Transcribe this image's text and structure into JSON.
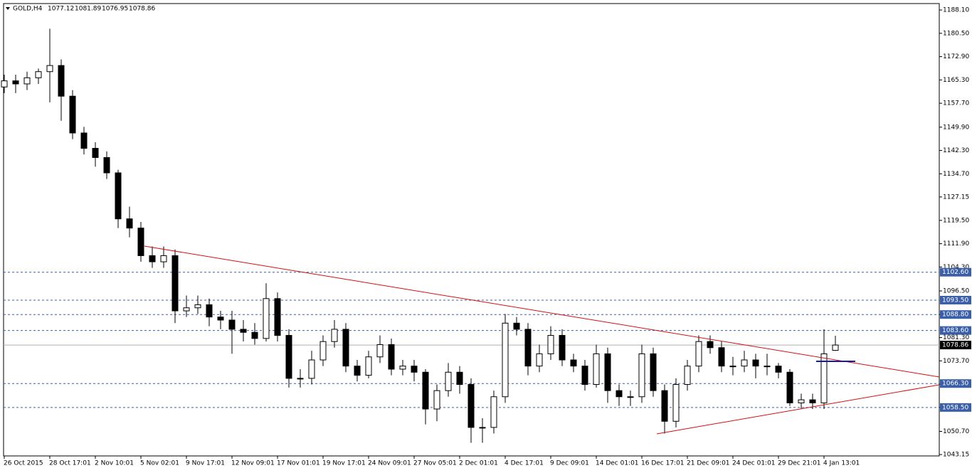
{
  "chart_data": {
    "type": "candlestick",
    "title": "GOLD,H4",
    "categories": [
      "26 Oct 2015",
      null,
      null,
      null,
      "28 Oct 17:01",
      null,
      null,
      null,
      "2 Nov 10:01",
      null,
      null,
      null,
      "5 Nov 02:01",
      null,
      null,
      null,
      "9 Nov 17:01",
      null,
      null,
      null,
      "12 Nov 09:01",
      null,
      null,
      null,
      "17 Nov 01:01",
      null,
      null,
      null,
      "19 Nov 17:01",
      null,
      null,
      null,
      "24 Nov 09:01",
      null,
      null,
      null,
      "27 Nov 05:01",
      null,
      null,
      null,
      "2 Dec 01:01",
      null,
      null,
      null,
      "4 Dec 17:01",
      null,
      null,
      null,
      "9 Dec 09:01",
      null,
      null,
      null,
      "14 Dec 01:01",
      null,
      null,
      null,
      "16 Dec 17:01",
      null,
      null,
      null,
      "21 Dec 09:01",
      null,
      null,
      null,
      "24 Dec 01:01",
      null,
      null,
      null,
      "29 Dec 21:01",
      null,
      null,
      null,
      "4 Jan 13:01",
      null
    ],
    "open": [
      1163,
      1165,
      1164,
      1166,
      1168,
      1170,
      1160,
      1148,
      1143,
      1140,
      1135,
      1120,
      1117,
      1108,
      1106,
      1108,
      1090,
      1091,
      1092,
      1088,
      1087,
      1084,
      1083,
      1081,
      1094,
      1082,
      1068,
      1068,
      1074,
      1080,
      1084,
      1072,
      1069,
      1075,
      1079,
      1071,
      1072,
      1070,
      1058,
      1064,
      1070,
      1066,
      1052,
      1052,
      1062,
      1086,
      1084,
      1072,
      1076,
      1082,
      1074,
      1072,
      1066,
      1076,
      1064,
      1062,
      1062,
      1076,
      1064,
      1054,
      1066,
      1072,
      1080,
      1078,
      1072,
      1072,
      1074,
      1072,
      1072,
      1070,
      1060,
      1061,
      1060,
      1077.12
    ],
    "high": [
      1167,
      1167,
      1168,
      1169,
      1182,
      1172,
      1162,
      1150,
      1145,
      1142,
      1136,
      1124,
      1119,
      1111,
      1111,
      1110,
      1095,
      1095,
      1094,
      1090,
      1090,
      1087,
      1086,
      1099,
      1096,
      1084,
      1071,
      1077,
      1082,
      1087,
      1086,
      1074,
      1077,
      1082,
      1081,
      1074,
      1074,
      1071,
      1066,
      1073,
      1072,
      1068,
      1055,
      1064,
      1089,
      1088,
      1086,
      1079,
      1085,
      1084,
      1076,
      1074,
      1079,
      1078,
      1066,
      1064,
      1079,
      1078,
      1066,
      1068,
      1074,
      1082,
      1082,
      1080,
      1075,
      1077,
      1076,
      1076,
      1073,
      1071,
      1063,
      1063,
      1084,
      1081.89
    ],
    "low": [
      1161,
      1161,
      1162,
      1164,
      1158,
      1152,
      1146,
      1141,
      1137,
      1133,
      1117,
      1114,
      1106,
      1104,
      1104,
      1086,
      1088,
      1089,
      1085,
      1084,
      1076,
      1080,
      1079,
      1080,
      1080,
      1065,
      1065,
      1066,
      1072,
      1078,
      1070,
      1067,
      1068,
      1073,
      1069,
      1069,
      1067,
      1053,
      1054,
      1062,
      1063,
      1047,
      1047,
      1050,
      1060,
      1082,
      1069,
      1070,
      1074,
      1072,
      1070,
      1064,
      1065,
      1060,
      1059,
      1059,
      1060,
      1062,
      1050,
      1052,
      1064,
      1070,
      1076,
      1070,
      1069,
      1070,
      1068,
      1069,
      1068,
      1059,
      1058,
      1058,
      1058,
      1076.95
    ],
    "close": [
      1165,
      1164,
      1166,
      1168,
      1170,
      1160,
      1148,
      1143,
      1140,
      1135,
      1120,
      1117,
      1108,
      1106,
      1108,
      1090,
      1091,
      1092,
      1088,
      1087,
      1084,
      1083,
      1081,
      1094,
      1082,
      1068,
      1068,
      1074,
      1080,
      1084,
      1072,
      1069,
      1075,
      1079,
      1071,
      1072,
      1070,
      1058,
      1064,
      1070,
      1066,
      1052,
      1052,
      1062,
      1086,
      1084,
      1072,
      1076,
      1082,
      1074,
      1072,
      1066,
      1076,
      1064,
      1062,
      1062,
      1076,
      1064,
      1054,
      1066,
      1072,
      1080,
      1078,
      1072,
      1072,
      1074,
      1072,
      1072,
      1070,
      1060,
      1061,
      1060,
      1076,
      1078.86
    ],
    "ylim": [
      1042.7,
      1190.2
    ],
    "yticks": [
      {
        "value": 1188.1,
        "label": "1188.10"
      },
      {
        "value": 1180.5,
        "label": "1180.50"
      },
      {
        "value": 1172.9,
        "label": "1172.90"
      },
      {
        "value": 1165.3,
        "label": "1165.30"
      },
      {
        "value": 1157.7,
        "label": "1157.70"
      },
      {
        "value": 1149.9,
        "label": "1149.90"
      },
      {
        "value": 1142.3,
        "label": "1142.30"
      },
      {
        "value": 1134.7,
        "label": "1134.70"
      },
      {
        "value": 1127.15,
        "label": "1127.15"
      },
      {
        "value": 1119.5,
        "label": "1119.50"
      },
      {
        "value": 1111.9,
        "label": "1111.90"
      },
      {
        "value": 1104.3,
        "label": "1104.30"
      },
      {
        "value": 1096.5,
        "label": "1096.50"
      },
      {
        "value": 1088.8,
        "label": "1088.80"
      },
      {
        "value": 1081.3,
        "label": "1081.30"
      },
      {
        "value": 1073.7,
        "label": "1073.70"
      },
      {
        "value": 1066.1,
        "label": "1066.10"
      },
      {
        "value": 1058.5,
        "label": "1058.50"
      },
      {
        "value": 1050.7,
        "label": "1050.70"
      },
      {
        "value": 1043.15,
        "label": "1043.15"
      }
    ],
    "levels": [
      {
        "value": 1102.6,
        "label": "1102.60"
      },
      {
        "value": 1093.5,
        "label": "1093.50"
      },
      {
        "value": 1088.8,
        "label": "1088.80"
      },
      {
        "value": 1083.6,
        "label": "1083.60"
      },
      {
        "value": 1066.3,
        "label": "1066.30"
      },
      {
        "value": 1058.5,
        "label": "1058.50"
      }
    ],
    "level_color": "#3a5fa8",
    "up_color": "#ffffff",
    "down_color": "#000000"
  }
}
